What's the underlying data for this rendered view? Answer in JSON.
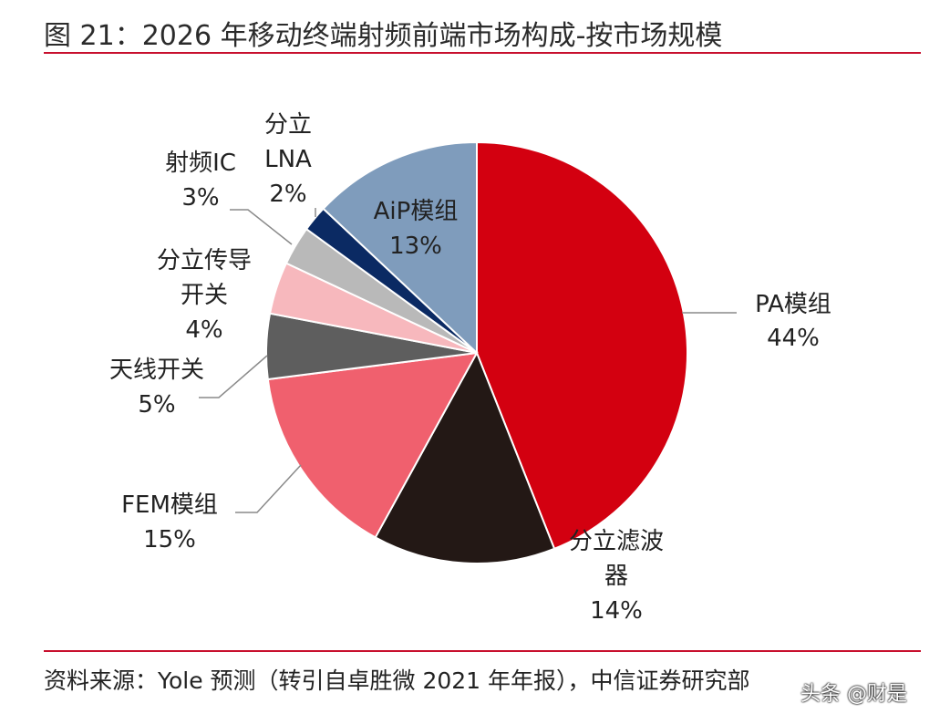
{
  "title": "图 21：2026 年移动终端射频前端市场构成-按市场规模",
  "source": "资料来源：Yole 预测（转引自卓胜微 2021 年年报），中信证券研究部",
  "watermark": "头条 @财是",
  "colors": {
    "accent": "#c8102e",
    "leader": "#8a8a8a",
    "slice_edge": "#ffffff"
  },
  "chart_data": {
    "type": "pie",
    "title": "2026 年移动终端射频前端市场构成-按市场规模",
    "start": "12 o'clock",
    "direction": "clockwise",
    "slices": [
      {
        "key": "pa",
        "label": "PA模组",
        "lines": [
          "PA模组",
          "44%"
        ],
        "value": 44,
        "value_text": "44%",
        "color": "#d30010"
      },
      {
        "key": "filter",
        "label": "分立滤波器",
        "lines": [
          "分立滤波",
          "器",
          "14%"
        ],
        "value": 14,
        "value_text": "14%",
        "color": "#231815"
      },
      {
        "key": "fem",
        "label": "FEM模组",
        "lines": [
          "FEM模组",
          "15%"
        ],
        "value": 15,
        "value_text": "15%",
        "color": "#f0606e"
      },
      {
        "key": "antenna",
        "label": "天线开关",
        "lines": [
          "天线开关",
          "5%"
        ],
        "value": 5,
        "value_text": "5%",
        "color": "#5e5e5e"
      },
      {
        "key": "switch",
        "label": "分立传导开关",
        "lines": [
          "分立传导",
          "开关",
          "4%"
        ],
        "value": 4,
        "value_text": "4%",
        "color": "#f7b8bd"
      },
      {
        "key": "rfic",
        "label": "射频IC",
        "lines": [
          "射频IC",
          "3%"
        ],
        "value": 3,
        "value_text": "3%",
        "color": "#b9b9b9"
      },
      {
        "key": "lna",
        "label": "分立LNA",
        "lines": [
          "分立",
          "LNA",
          "2%"
        ],
        "value": 2,
        "value_text": "2%",
        "color": "#0b2a63"
      },
      {
        "key": "aip",
        "label": "AiP模组",
        "lines": [
          "AiP模组",
          "13%"
        ],
        "value": 13,
        "value_text": "13%",
        "color": "#7f9cbc"
      }
    ]
  }
}
